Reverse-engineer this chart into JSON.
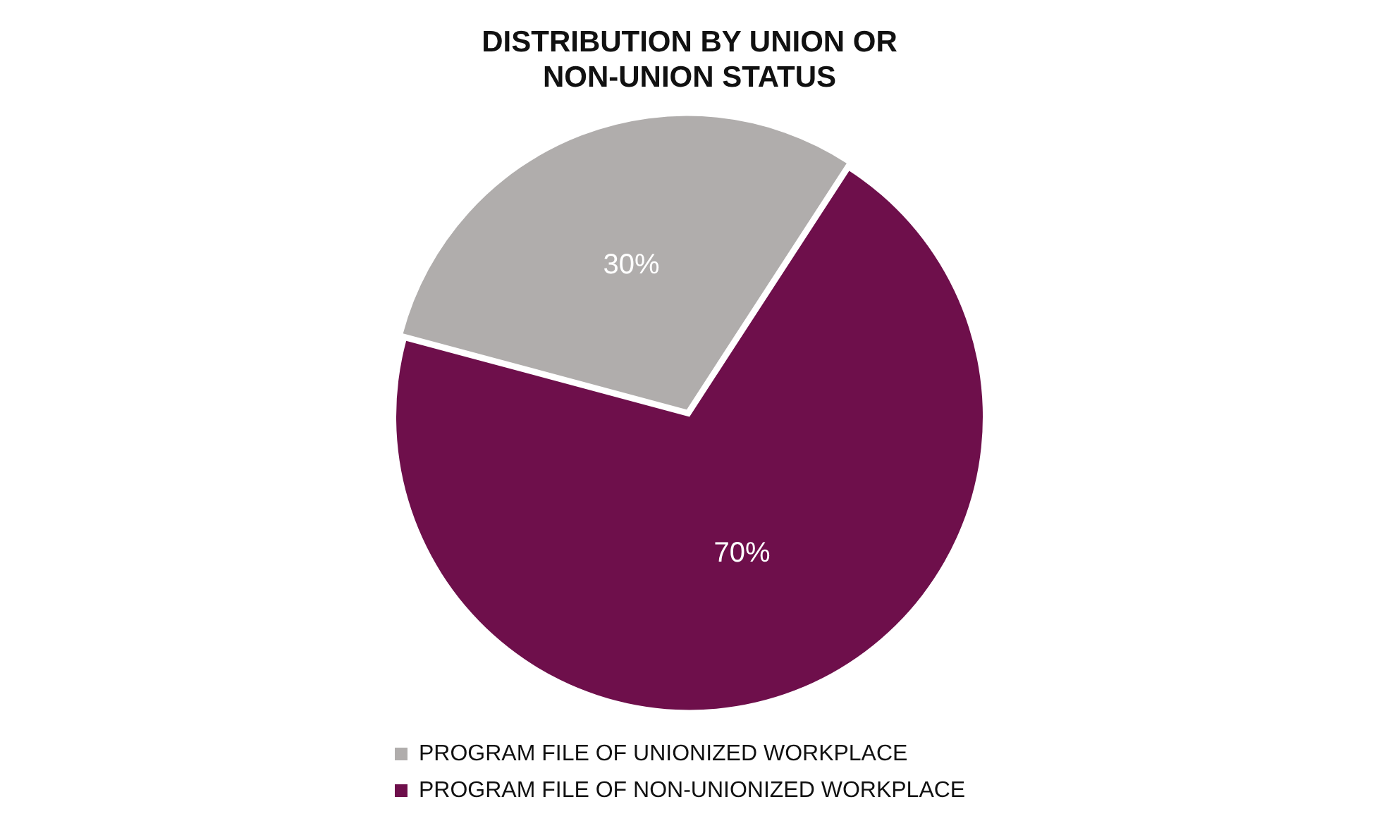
{
  "chart_data": {
    "type": "pie",
    "title": [
      "DISTRIBUTION BY UNION OR",
      "NON-UNION STATUS"
    ],
    "categories": [
      "PROGRAM FILE OF UNIONIZED WORKPLACE",
      "PROGRAM FILE OF NON-UNIONIZED WORKPLACE"
    ],
    "values": [
      30,
      70
    ],
    "colors": [
      "#b0adac",
      "#6e0f4b"
    ],
    "value_labels": [
      "30%",
      "70%"
    ],
    "legend": "bottom"
  }
}
